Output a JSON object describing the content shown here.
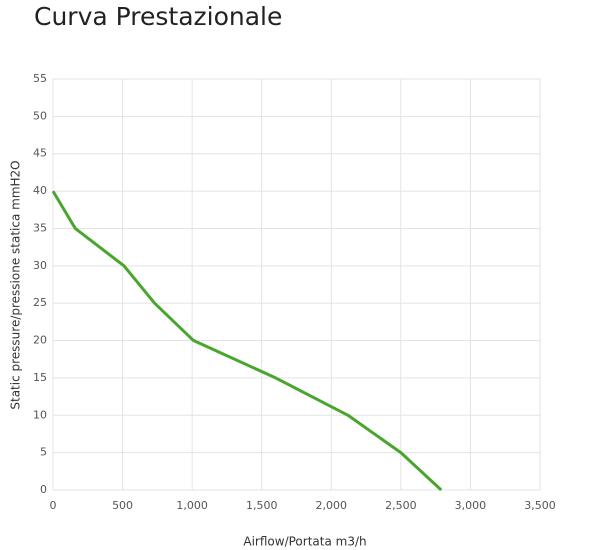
{
  "chart_data": {
    "type": "line",
    "title": "Curva Prestazionale",
    "x_label": "Airflow/Portata m3/h",
    "y_label": "Static pressure/pressione statica mmH2O",
    "series": [
      {
        "color": "#4aa52e",
        "x": [
          0,
          160,
          510,
          730,
          1010,
          1600,
          2120,
          2500,
          2790
        ],
        "values": [
          40,
          35,
          30,
          25,
          20,
          15,
          10,
          5,
          0
        ]
      }
    ],
    "xlim": [
      0,
      3500
    ],
    "xticks": [
      0,
      500,
      {
        "value": 1000,
        "label": "1,000"
      },
      {
        "value": 1500,
        "label": "1,500"
      },
      {
        "value": 2000,
        "label": "2,000"
      },
      {
        "value": 2500,
        "label": "2,500"
      },
      {
        "value": 3000,
        "label": "3,000"
      },
      {
        "value": 3500,
        "label": "3,500"
      }
    ],
    "ylim": [
      0,
      55
    ],
    "yticks": [
      0,
      5,
      10,
      15,
      20,
      25,
      30,
      35,
      40,
      45,
      50,
      55
    ],
    "grid": true
  }
}
